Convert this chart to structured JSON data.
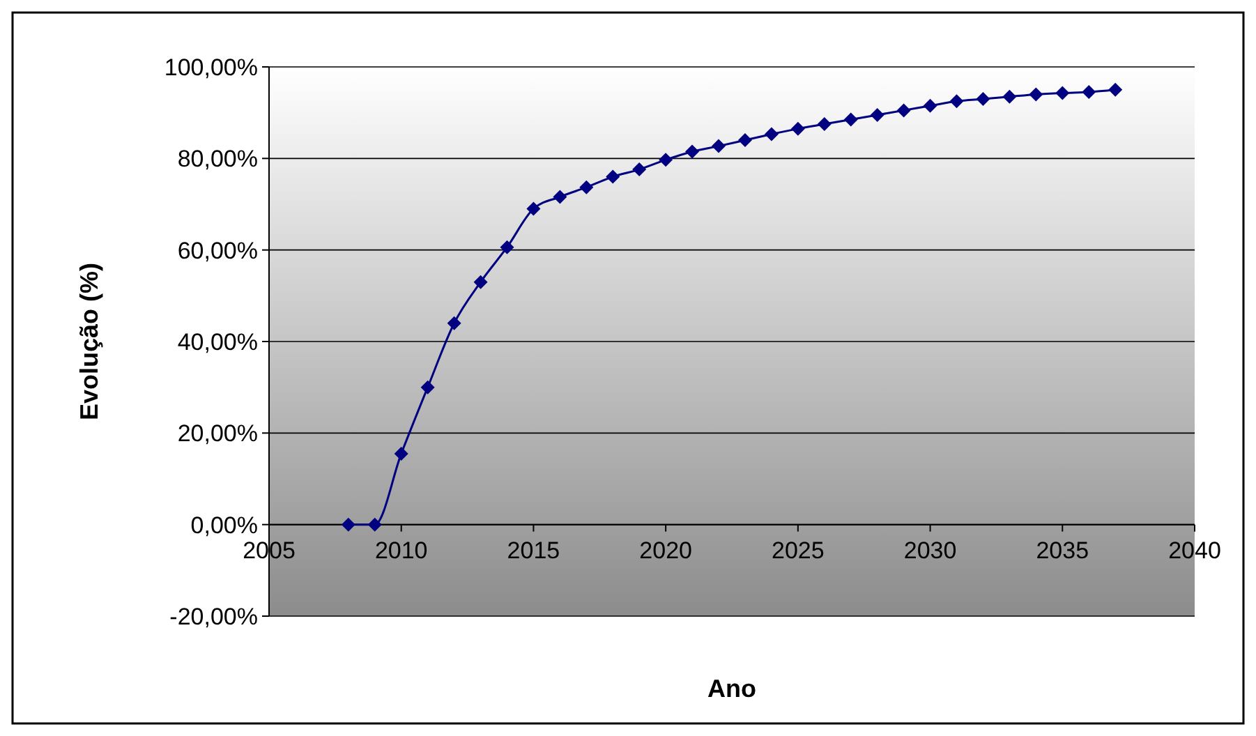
{
  "chart_data": {
    "type": "line",
    "xlabel": "Ano",
    "ylabel": "Evolução (%)",
    "x": [
      2008,
      2009,
      2010,
      2011,
      2012,
      2013,
      2014,
      2015,
      2016,
      2017,
      2018,
      2019,
      2020,
      2021,
      2022,
      2023,
      2024,
      2025,
      2026,
      2027,
      2028,
      2029,
      2030,
      2031,
      2032,
      2033,
      2034,
      2035,
      2036,
      2037
    ],
    "series": [
      {
        "color": "#000080",
        "values": [
          0,
          0,
          15.5,
          30,
          44,
          53,
          60.6,
          69,
          71.6,
          73.7,
          76,
          77.6,
          79.7,
          81.5,
          82.7,
          84,
          85.3,
          86.5,
          87.5,
          88.5,
          89.5,
          90.5,
          91.5,
          92.5,
          93,
          93.5,
          94,
          94.3,
          94.5,
          95
        ]
      }
    ],
    "xlim": [
      2005,
      2040
    ],
    "xticks": [
      2005,
      2010,
      2015,
      2020,
      2025,
      2030,
      2035,
      2040
    ],
    "ylim": [
      -20,
      100
    ],
    "yticks": [
      {
        "value": -20,
        "label": "-20,00%"
      },
      {
        "value": 0,
        "label": "0,00%"
      },
      {
        "value": 20,
        "label": "20,00%"
      },
      {
        "value": 40,
        "label": "40,00%"
      },
      {
        "value": 60,
        "label": "60,00%"
      },
      {
        "value": 80,
        "label": "80,00%"
      },
      {
        "value": 100,
        "label": "100,00%"
      }
    ],
    "grid": "y",
    "marker": "diamond",
    "line_style": "solid"
  }
}
